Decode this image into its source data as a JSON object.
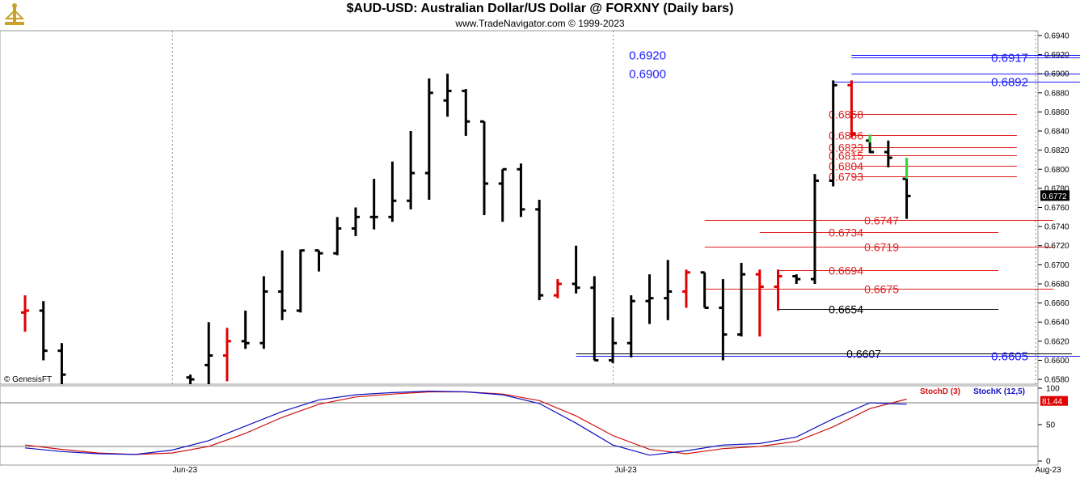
{
  "header": {
    "title": "$AUD-USD:  Australian Dollar/US Dollar @ FORXNY  (Daily bars)",
    "subtitle": "www.TradeNavigator.com © 1999-2023",
    "watermark": "© GenesisFT"
  },
  "colors": {
    "up_bar": "#000000",
    "down_bar": "#e00000",
    "highlight_bar": "#33dd33",
    "blue_level": "#1a1aff",
    "red_level": "#e02020",
    "black_level": "#000000",
    "stoch_d": "#d01010",
    "stoch_k": "#1010c0",
    "last_price_bg": "#000000",
    "stoch_value_bg": "#e00000"
  },
  "chart_data": [
    {
      "type": "ohlc",
      "title": "$AUD-USD:  Australian Dollar/US Dollar @ FORXNY  (Daily bars)",
      "ylim": [
        0.6575,
        0.6945
      ],
      "yticks": [
        "0.6940",
        "0.6920",
        "0.6900",
        "0.6880",
        "0.6860",
        "0.6840",
        "0.6820",
        "0.6800",
        "0.6780",
        "0.6760",
        "0.6740",
        "0.6720",
        "0.6700",
        "0.6680",
        "0.6660",
        "0.6640",
        "0.6620",
        "0.6600",
        "0.6580"
      ],
      "xticks": [
        "Jun-23",
        "Jul-23",
        "Aug-23"
      ],
      "xtick_index": [
        8,
        32,
        55
      ],
      "last_price": "0.6772",
      "bars": [
        {
          "i": 0,
          "o": 0.665,
          "h": 0.6668,
          "l": 0.663,
          "c": 0.6652,
          "color": "red"
        },
        {
          "i": 1,
          "o": 0.6652,
          "h": 0.6662,
          "l": 0.66,
          "c": 0.661,
          "color": "black"
        },
        {
          "i": 2,
          "o": 0.661,
          "h": 0.6618,
          "l": 0.6575,
          "c": 0.6585,
          "color": "black"
        },
        {
          "i": 9,
          "o": 0.6582,
          "h": 0.6585,
          "l": 0.6575,
          "c": 0.658,
          "color": "black"
        },
        {
          "i": 10,
          "o": 0.6595,
          "h": 0.664,
          "l": 0.6575,
          "c": 0.6605,
          "color": "black"
        },
        {
          "i": 11,
          "o": 0.6605,
          "h": 0.6634,
          "l": 0.6578,
          "c": 0.662,
          "color": "red"
        },
        {
          "i": 12,
          "o": 0.662,
          "h": 0.6652,
          "l": 0.6612,
          "c": 0.6618,
          "color": "black"
        },
        {
          "i": 13,
          "o": 0.6618,
          "h": 0.6688,
          "l": 0.6612,
          "c": 0.6672,
          "color": "black"
        },
        {
          "i": 14,
          "o": 0.6672,
          "h": 0.6715,
          "l": 0.6642,
          "c": 0.6652,
          "color": "black"
        },
        {
          "i": 15,
          "o": 0.6652,
          "h": 0.6716,
          "l": 0.665,
          "c": 0.6715,
          "color": "black"
        },
        {
          "i": 16,
          "o": 0.6715,
          "h": 0.6715,
          "l": 0.6693,
          "c": 0.6712,
          "color": "black"
        },
        {
          "i": 17,
          "o": 0.6712,
          "h": 0.675,
          "l": 0.671,
          "c": 0.6738,
          "color": "black"
        },
        {
          "i": 18,
          "o": 0.6738,
          "h": 0.676,
          "l": 0.673,
          "c": 0.675,
          "color": "black"
        },
        {
          "i": 19,
          "o": 0.675,
          "h": 0.679,
          "l": 0.6737,
          "c": 0.675,
          "color": "black"
        },
        {
          "i": 20,
          "o": 0.675,
          "h": 0.6808,
          "l": 0.6745,
          "c": 0.6767,
          "color": "black"
        },
        {
          "i": 21,
          "o": 0.6767,
          "h": 0.684,
          "l": 0.6758,
          "c": 0.6796,
          "color": "black"
        },
        {
          "i": 22,
          "o": 0.6796,
          "h": 0.6895,
          "l": 0.6768,
          "c": 0.688,
          "color": "black"
        },
        {
          "i": 23,
          "o": 0.6872,
          "h": 0.69,
          "l": 0.6855,
          "c": 0.6882,
          "color": "black"
        },
        {
          "i": 24,
          "o": 0.6882,
          "h": 0.6884,
          "l": 0.6835,
          "c": 0.685,
          "color": "black"
        },
        {
          "i": 25,
          "o": 0.685,
          "h": 0.685,
          "l": 0.6752,
          "c": 0.6785,
          "color": "black"
        },
        {
          "i": 26,
          "o": 0.6785,
          "h": 0.68,
          "l": 0.6745,
          "c": 0.68,
          "color": "black"
        },
        {
          "i": 27,
          "o": 0.68,
          "h": 0.6806,
          "l": 0.675,
          "c": 0.6758,
          "color": "black"
        },
        {
          "i": 28,
          "o": 0.6758,
          "h": 0.6768,
          "l": 0.6663,
          "c": 0.6668,
          "color": "black"
        },
        {
          "i": 29,
          "o": 0.6668,
          "h": 0.6685,
          "l": 0.6665,
          "c": 0.668,
          "color": "red"
        },
        {
          "i": 30,
          "o": 0.668,
          "h": 0.672,
          "l": 0.667,
          "c": 0.6676,
          "color": "black"
        },
        {
          "i": 31,
          "o": 0.6676,
          "h": 0.6688,
          "l": 0.66,
          "c": 0.66,
          "color": "black"
        },
        {
          "i": 32,
          "o": 0.66,
          "h": 0.6645,
          "l": 0.6597,
          "c": 0.6618,
          "color": "black"
        },
        {
          "i": 33,
          "o": 0.6618,
          "h": 0.6668,
          "l": 0.6603,
          "c": 0.6662,
          "color": "black"
        },
        {
          "i": 34,
          "o": 0.6662,
          "h": 0.669,
          "l": 0.6638,
          "c": 0.6665,
          "color": "black"
        },
        {
          "i": 35,
          "o": 0.6665,
          "h": 0.6705,
          "l": 0.6642,
          "c": 0.6672,
          "color": "black"
        },
        {
          "i": 36,
          "o": 0.6672,
          "h": 0.6695,
          "l": 0.6655,
          "c": 0.6692,
          "color": "red"
        },
        {
          "i": 37,
          "o": 0.6692,
          "h": 0.6692,
          "l": 0.6655,
          "c": 0.6655,
          "color": "black"
        },
        {
          "i": 38,
          "o": 0.6655,
          "h": 0.6685,
          "l": 0.66,
          "c": 0.6627,
          "color": "black"
        },
        {
          "i": 39,
          "o": 0.6627,
          "h": 0.6702,
          "l": 0.6625,
          "c": 0.669,
          "color": "black"
        },
        {
          "i": 40,
          "o": 0.669,
          "h": 0.6695,
          "l": 0.6625,
          "c": 0.6677,
          "color": "red"
        },
        {
          "i": 41,
          "o": 0.6677,
          "h": 0.6695,
          "l": 0.6652,
          "c": 0.6688,
          "color": "red"
        },
        {
          "i": 42,
          "o": 0.6688,
          "h": 0.669,
          "l": 0.668,
          "c": 0.6685,
          "color": "black"
        },
        {
          "i": 43,
          "o": 0.6685,
          "h": 0.6795,
          "l": 0.668,
          "c": 0.6788,
          "color": "black"
        },
        {
          "i": 44,
          "o": 0.6788,
          "h": 0.6893,
          "l": 0.6782,
          "c": 0.6888,
          "color": "black"
        },
        {
          "i": 45,
          "o": 0.6888,
          "h": 0.6893,
          "l": 0.6833,
          "c": 0.6837,
          "color": "red"
        },
        {
          "i": 46,
          "o": 0.683,
          "h": 0.6836,
          "l": 0.6817,
          "c": 0.6818,
          "color": "black"
        },
        {
          "i": 47,
          "o": 0.6818,
          "h": 0.683,
          "l": 0.6802,
          "c": 0.6812,
          "color": "black"
        },
        {
          "i": 48,
          "o": 0.679,
          "h": 0.6812,
          "l": 0.6748,
          "c": 0.6772,
          "color": "black"
        }
      ],
      "green_segments": [
        {
          "i": 46,
          "from": 0.6828,
          "to": 0.6836
        },
        {
          "i": 48,
          "from": 0.679,
          "to": 0.6812
        }
      ],
      "levels": [
        {
          "value": 0.692,
          "label": "0.6920",
          "color": "blue",
          "side": "left",
          "from": 45,
          "to": 65
        },
        {
          "value": 0.6917,
          "label": "0.6917",
          "color": "blue",
          "side": "right",
          "from": 45,
          "to": 65
        },
        {
          "value": 0.69,
          "label": "0.6900",
          "color": "blue",
          "side": "left",
          "from": 45,
          "to": 65
        },
        {
          "value": 0.6892,
          "label": "0.6892",
          "color": "blue",
          "side": "right",
          "from": 44,
          "to": 65
        },
        {
          "value": 0.6858,
          "label": "0.6858",
          "color": "red",
          "side": "mid",
          "from": 45,
          "to": 54
        },
        {
          "value": 0.6836,
          "label": "0.6836",
          "color": "red",
          "side": "mid",
          "from": 45,
          "to": 54
        },
        {
          "value": 0.6823,
          "label": "0.6823",
          "color": "red",
          "side": "mid",
          "from": 45,
          "to": 54
        },
        {
          "value": 0.6815,
          "label": "0.6815",
          "color": "red",
          "side": "mid",
          "from": 45,
          "to": 54
        },
        {
          "value": 0.6804,
          "label": "0.6804",
          "color": "red",
          "side": "mid",
          "from": 45,
          "to": 54
        },
        {
          "value": 0.6793,
          "label": "0.6793",
          "color": "red",
          "side": "mid",
          "from": 45,
          "to": 54
        },
        {
          "value": 0.6747,
          "label": "0.6747",
          "color": "red",
          "side": "far",
          "from": 37,
          "to": 56
        },
        {
          "value": 0.6734,
          "label": "0.6734",
          "color": "red",
          "side": "mid",
          "from": 40,
          "to": 53
        },
        {
          "value": 0.6719,
          "label": "0.6719",
          "color": "red",
          "side": "far",
          "from": 37,
          "to": 56
        },
        {
          "value": 0.6694,
          "label": "0.6694",
          "color": "red",
          "side": "mid",
          "from": 41,
          "to": 53
        },
        {
          "value": 0.6675,
          "label": "0.6675",
          "color": "red",
          "side": "far",
          "from": 37,
          "to": 56
        },
        {
          "value": 0.6654,
          "label": "0.6654",
          "color": "black",
          "side": "mid",
          "from": 41,
          "to": 53
        },
        {
          "value": 0.6607,
          "label": "0.6607",
          "color": "black",
          "side": "farr",
          "from": 30,
          "to": 57
        },
        {
          "value": 0.6605,
          "label": "0.6605",
          "color": "blue",
          "side": "right",
          "from": 30,
          "to": 65
        }
      ]
    },
    {
      "type": "line",
      "ylim": [
        0,
        100
      ],
      "yticks": [
        "100",
        "50",
        "0"
      ],
      "guide_lines": [
        80,
        20
      ],
      "legend": [
        "StochD (3)",
        "StochK (12,5)"
      ],
      "value_label": "81.44",
      "series": [
        {
          "name": "StochD (3)",
          "x": [
            0,
            2,
            4,
            6,
            8,
            10,
            12,
            14,
            16,
            18,
            20,
            22,
            24,
            26,
            28,
            30,
            32,
            34,
            36,
            38,
            40,
            42,
            44,
            46,
            48
          ],
          "values": [
            22,
            16,
            11,
            9,
            11,
            20,
            38,
            60,
            78,
            88,
            92,
            95,
            95,
            92,
            83,
            62,
            35,
            16,
            10,
            17,
            20,
            27,
            47,
            72,
            85
          ]
        },
        {
          "name": "StochK (12,5)",
          "x": [
            0,
            2,
            4,
            6,
            8,
            10,
            12,
            14,
            16,
            18,
            20,
            22,
            24,
            26,
            28,
            30,
            32,
            34,
            36,
            38,
            40,
            42,
            44,
            46,
            48
          ],
          "values": [
            18,
            13,
            10,
            9,
            15,
            28,
            48,
            68,
            84,
            91,
            94,
            96,
            95,
            91,
            79,
            52,
            22,
            8,
            14,
            22,
            24,
            33,
            58,
            80,
            78
          ]
        }
      ]
    }
  ]
}
